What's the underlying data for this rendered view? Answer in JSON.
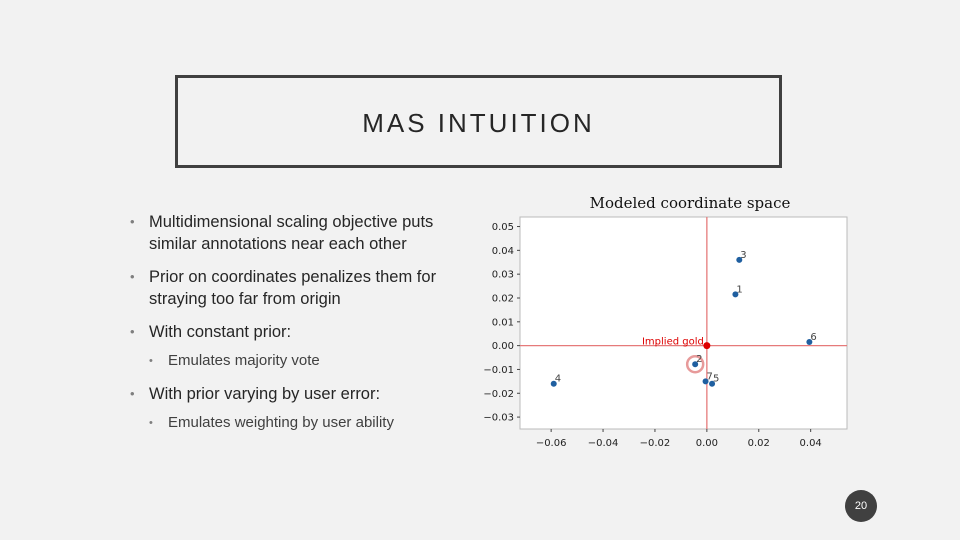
{
  "slide": {
    "title": "MAS INTUITION",
    "page_number": "20"
  },
  "bullets": [
    {
      "text": "Multidimensional scaling objective puts similar annotations near each other",
      "sub": []
    },
    {
      "text": "Prior on coordinates penalizes them for straying too far from origin",
      "sub": []
    },
    {
      "text": "With constant prior:",
      "sub": [
        "Emulates majority vote"
      ]
    },
    {
      "text": "With prior varying by user error:",
      "sub": [
        "Emulates weighting by user ability"
      ]
    }
  ],
  "bullet_glyph": "•",
  "chart_data": {
    "type": "scatter",
    "title": "Modeled coordinate space",
    "xlim": [
      -0.072,
      0.054
    ],
    "ylim": [
      -0.035,
      0.054
    ],
    "xticks": [
      -0.06,
      -0.04,
      -0.02,
      0.0,
      0.02,
      0.04
    ],
    "xtick_labels": [
      "−0.06",
      "−0.04",
      "−0.02",
      "0.00",
      "0.02",
      "0.04"
    ],
    "yticks": [
      0.05,
      0.04,
      0.03,
      0.02,
      0.01,
      0.0,
      -0.01,
      -0.02,
      -0.03
    ],
    "ytick_labels": [
      "0.05",
      "0.04",
      "0.03",
      "0.02",
      "0.01",
      "0.00",
      "−0.01",
      "−0.02",
      "−0.03"
    ],
    "points": [
      {
        "label": "1",
        "x": 0.011,
        "y": 0.0215
      },
      {
        "label": "2",
        "x": -0.0045,
        "y": -0.0078
      },
      {
        "label": "3",
        "x": 0.0125,
        "y": 0.036
      },
      {
        "label": "4",
        "x": -0.059,
        "y": -0.016
      },
      {
        "label": "5",
        "x": 0.002,
        "y": -0.016
      },
      {
        "label": "6",
        "x": 0.0395,
        "y": 0.0015
      },
      {
        "label": "7",
        "x": -0.0005,
        "y": -0.015
      }
    ],
    "gold": {
      "label": "Implied gold",
      "x": 0,
      "y": 0
    },
    "highlight_point": "2",
    "colors": {
      "points": "#1f5fa0",
      "lines": "#e67a7a",
      "gold": "#dd0000",
      "highlight": "#e79a9a"
    }
  }
}
